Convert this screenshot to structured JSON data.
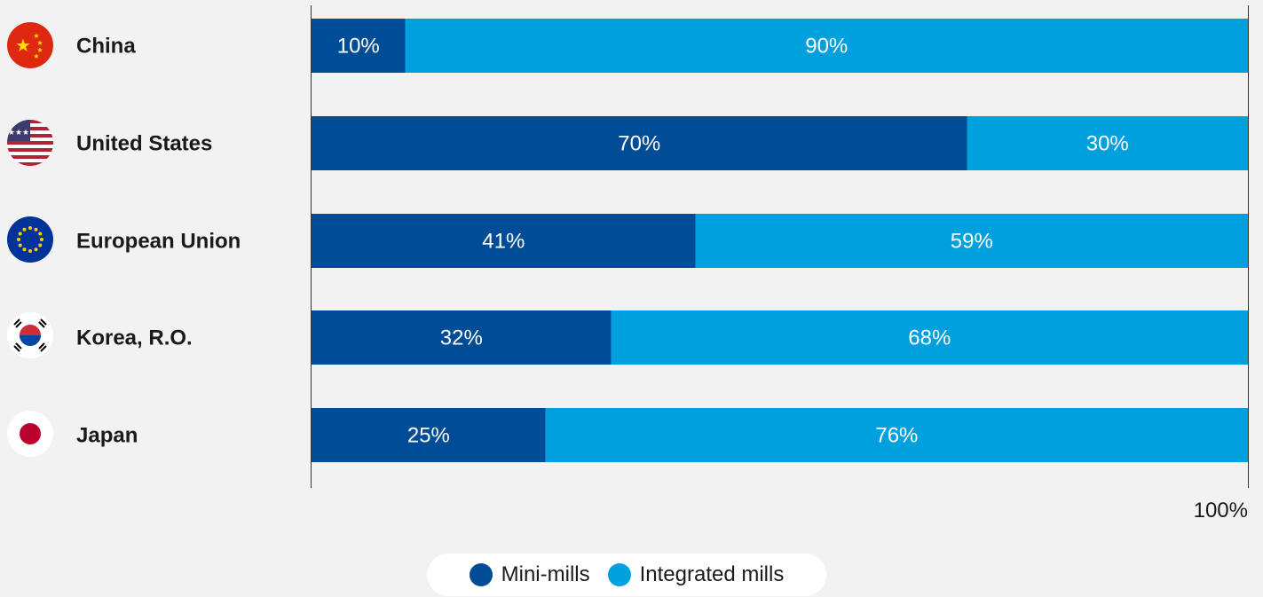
{
  "chart_data": {
    "type": "bar",
    "orientation": "horizontal",
    "stacked": true,
    "categories": [
      "China",
      "United States",
      "European Union",
      "Korea, R.O.",
      "Japan"
    ],
    "series": [
      {
        "name": "Mini-mills",
        "values": [
          10,
          70,
          41,
          32,
          25
        ],
        "labels": [
          "10%",
          "70%",
          "41%",
          "32%",
          "25%"
        ],
        "color": "#004c97"
      },
      {
        "name": "Integrated mills",
        "values": [
          90,
          30,
          59,
          68,
          76
        ],
        "labels": [
          "90%",
          "30%",
          "59%",
          "68%",
          "76%"
        ],
        "color": "#00a0df"
      }
    ],
    "xlim": [
      0,
      100
    ],
    "x_end_label": "100%",
    "grid": false,
    "legend_position": "bottom-center"
  },
  "flags": [
    "china-flag-icon",
    "us-flag-icon",
    "eu-flag-icon",
    "korea-flag-icon",
    "japan-flag-icon"
  ]
}
